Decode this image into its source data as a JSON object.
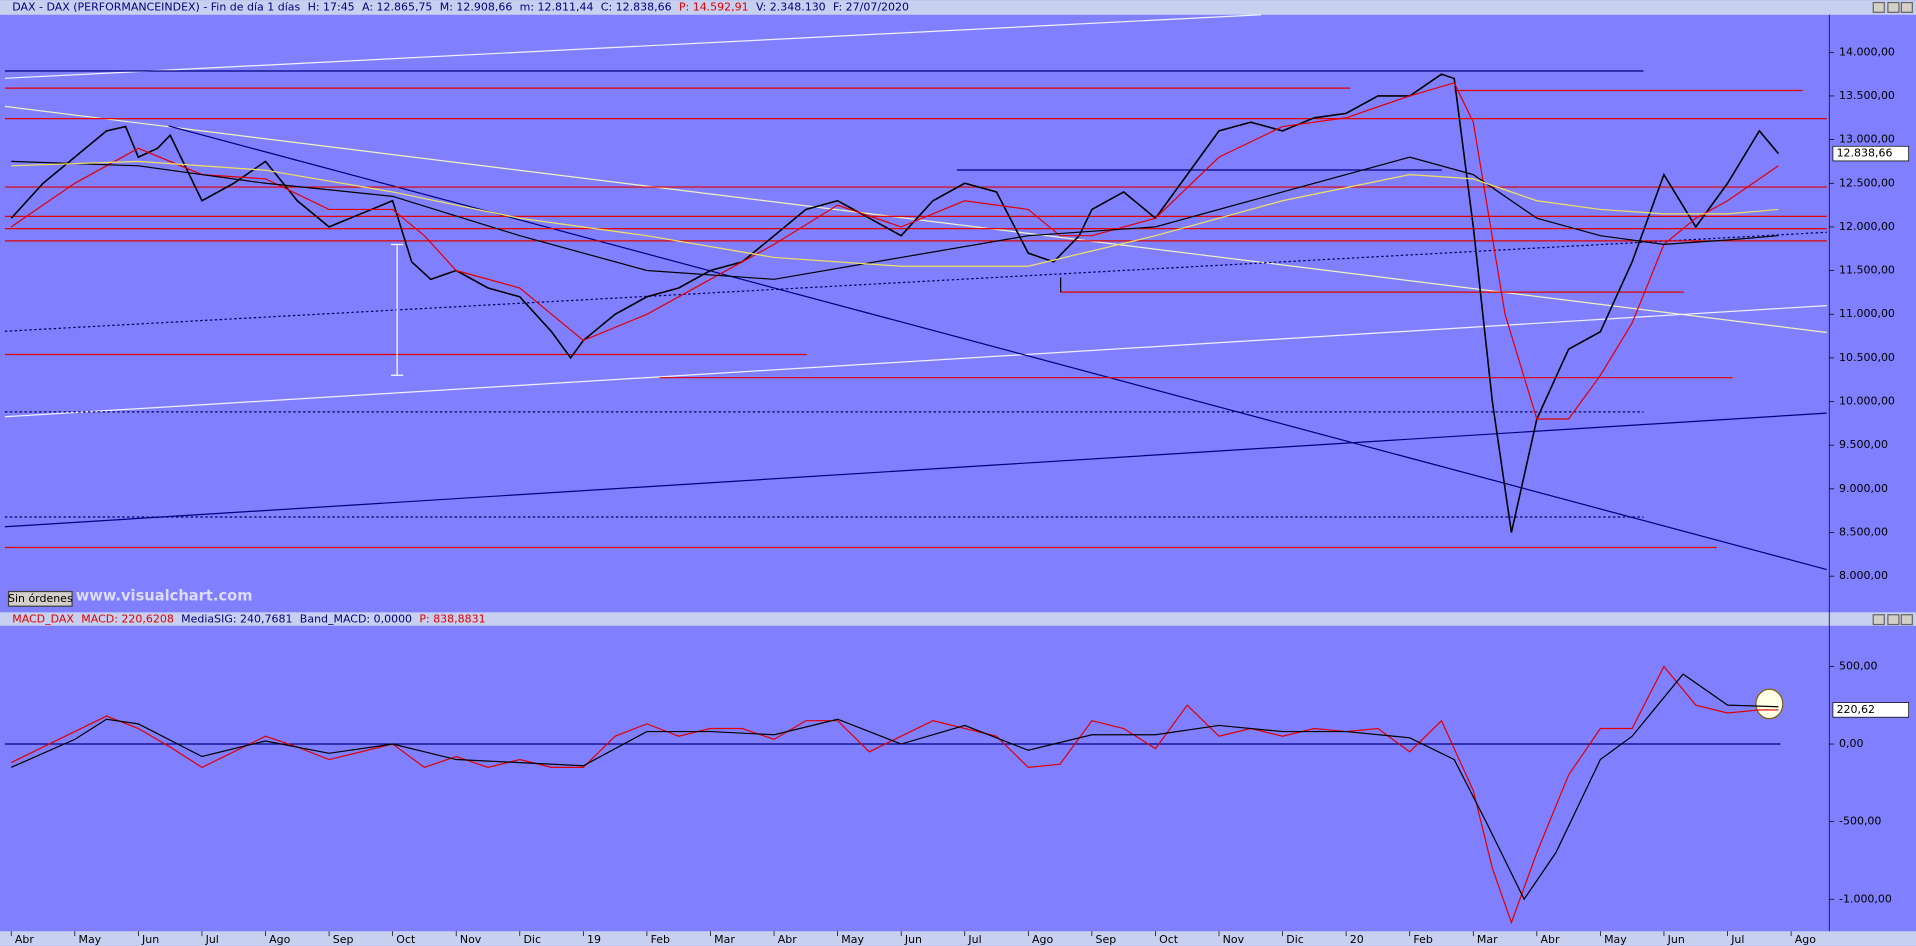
{
  "chart_data": [
    {
      "type": "line",
      "title": "DAX - DAX (PERFORMANCEINDEX) - Fin de día 1 días",
      "info": [
        "H: 17:45",
        "A: 12.865,75",
        "M: 12.908,66",
        "m: 12.811,44",
        "C: 12.838,66",
        "P: 14.592,91",
        "V: 2.348.130",
        "F: 27/07/2020"
      ],
      "info_colors": [
        "#000080",
        "#000080",
        "#000080",
        "#000080",
        "#000080",
        "#e00000",
        "#000080",
        "#000080"
      ],
      "price_label": "12.838,66",
      "button": "Sin órdenes",
      "watermark": "www.visualchart.com",
      "xlim": [
        -0.1,
        28.6
      ],
      "ylim": [
        7600,
        14430
      ],
      "yticks": [
        {
          "value": 8000,
          "label": "8.000,00"
        },
        {
          "value": 8500,
          "label": "8.500,00"
        },
        {
          "value": 9000,
          "label": "9.000,00"
        },
        {
          "value": 9500,
          "label": "9.500,00"
        },
        {
          "value": 10000,
          "label": "10.000,00"
        },
        {
          "value": 10500,
          "label": "10.500,00"
        },
        {
          "value": 11000,
          "label": "11.000,00"
        },
        {
          "value": 11500,
          "label": "11.500,00"
        },
        {
          "value": 12000,
          "label": "12.000,00"
        },
        {
          "value": 12500,
          "label": "12.500,00"
        },
        {
          "value": 13000,
          "label": "13.000,00"
        },
        {
          "value": 13500,
          "label": "13.500,00"
        },
        {
          "value": 14000,
          "label": "14.000,00"
        }
      ],
      "series": [
        {
          "color": "#000000",
          "width": 1.3,
          "x": [
            0,
            0.5,
            1,
            1.5,
            1.8,
            2,
            2.3,
            2.5,
            3,
            3.5,
            4,
            4.5,
            5,
            5.5,
            6,
            6.3,
            6.6,
            7,
            7.5,
            8,
            8.5,
            8.8,
            9,
            9.5,
            10,
            10.5,
            11,
            11.5,
            12,
            12.5,
            13,
            13.5,
            14,
            14.5,
            15,
            15.5,
            16,
            16.4,
            16.8,
            17,
            17.5,
            18,
            18.5,
            19,
            19.5,
            20,
            20.5,
            21,
            21.5,
            22,
            22.5,
            22.7,
            23,
            23.3,
            23.6,
            24,
            24.5,
            25,
            25.5,
            26,
            26.5,
            27,
            27.5,
            27.8
          ],
          "values": [
            12100,
            12500,
            12800,
            13100,
            13150,
            12800,
            12900,
            13050,
            12300,
            12500,
            12750,
            12300,
            12000,
            12150,
            12300,
            11600,
            11400,
            11500,
            11300,
            11200,
            10800,
            10500,
            10700,
            11000,
            11200,
            11300,
            11500,
            11600,
            11900,
            12200,
            12300,
            12100,
            11900,
            12300,
            12500,
            12400,
            11700,
            11600,
            11900,
            12200,
            12400,
            12100,
            12600,
            13100,
            13200,
            13100,
            13250,
            13300,
            13500,
            13500,
            13750,
            13700,
            12000,
            10000,
            8500,
            9800,
            10600,
            10800,
            11600,
            12600,
            12000,
            12500,
            13100,
            12840
          ]
        },
        {
          "color": "#e00000",
          "width": 1,
          "x": [
            0,
            1,
            2,
            3,
            4,
            5,
            6,
            6.5,
            7,
            8,
            9,
            10,
            11,
            12,
            13,
            14,
            15,
            16,
            16.5,
            17,
            18,
            19,
            20,
            21,
            22,
            22.7,
            23,
            23.5,
            24,
            24.5,
            25,
            25.5,
            26,
            26.5,
            27,
            27.8
          ],
          "values": [
            12000,
            12500,
            12900,
            12600,
            12550,
            12200,
            12200,
            11900,
            11500,
            11300,
            10700,
            11000,
            11400,
            11800,
            12250,
            12000,
            12300,
            12200,
            11900,
            11900,
            12100,
            12800,
            13150,
            13250,
            13500,
            13650,
            13200,
            11000,
            9800,
            9800,
            10300,
            10900,
            11800,
            12100,
            12300,
            12700
          ]
        },
        {
          "color": "#000000",
          "width": 1,
          "x": [
            0,
            2,
            4,
            6,
            8,
            10,
            12,
            14,
            16,
            18,
            20,
            22,
            23,
            24,
            25,
            26,
            27,
            27.8
          ],
          "values": [
            12750,
            12700,
            12500,
            12350,
            11900,
            11500,
            11400,
            11650,
            11900,
            12000,
            12400,
            12800,
            12600,
            12100,
            11900,
            11800,
            11850,
            11900
          ]
        },
        {
          "color": "#f0e060",
          "width": 1,
          "x": [
            0,
            2,
            4,
            6,
            8,
            10,
            12,
            14,
            16,
            18,
            20,
            22,
            23,
            24,
            25,
            26,
            27,
            27.8
          ],
          "values": [
            12700,
            12750,
            12650,
            12400,
            12100,
            11900,
            11650,
            11550,
            11550,
            11900,
            12300,
            12600,
            12550,
            12300,
            12200,
            12150,
            12150,
            12200
          ]
        }
      ]
    },
    {
      "type": "line",
      "title": "MACD_DAX",
      "info": [
        "MACD: 220,6208",
        "MediaSIG: 240,7681",
        "Band_MACD: 0,0000",
        "P: 838,8831"
      ],
      "info_colors": [
        "#e00000",
        "#000080",
        "#000080",
        "#e00000"
      ],
      "price_label": "220,62",
      "band": 0,
      "band_color": "#000080",
      "xlim": [
        -0.1,
        28.6
      ],
      "ylim": [
        -1206,
        762
      ],
      "yticks": [
        {
          "value": -1000,
          "label": "-1.000,00"
        },
        {
          "value": -500,
          "label": "-500,00"
        },
        {
          "value": 0,
          "label": "0,00"
        },
        {
          "value": 500,
          "label": "500,00"
        }
      ],
      "xticks": [
        {
          "value": 0,
          "label": "Abr"
        },
        {
          "value": 1,
          "label": "May"
        },
        {
          "value": 2,
          "label": "Jun"
        },
        {
          "value": 3,
          "label": "Jul"
        },
        {
          "value": 4,
          "label": "Ago"
        },
        {
          "value": 5,
          "label": "Sep"
        },
        {
          "value": 6,
          "label": "Oct"
        },
        {
          "value": 7,
          "label": "Nov"
        },
        {
          "value": 8,
          "label": "Dic"
        },
        {
          "value": 9,
          "label": "19"
        },
        {
          "value": 10,
          "label": "Feb"
        },
        {
          "value": 11,
          "label": "Mar"
        },
        {
          "value": 12,
          "label": "Abr"
        },
        {
          "value": 13,
          "label": "May"
        },
        {
          "value": 14,
          "label": "Jun"
        },
        {
          "value": 15,
          "label": "Jul"
        },
        {
          "value": 16,
          "label": "Ago"
        },
        {
          "value": 17,
          "label": "Sep"
        },
        {
          "value": 18,
          "label": "Oct"
        },
        {
          "value": 19,
          "label": "Nov"
        },
        {
          "value": 20,
          "label": "Dic"
        },
        {
          "value": 21,
          "label": "20"
        },
        {
          "value": 22,
          "label": "Feb"
        },
        {
          "value": 23,
          "label": "Mar"
        },
        {
          "value": 24,
          "label": "Abr"
        },
        {
          "value": 25,
          "label": "May"
        },
        {
          "value": 26,
          "label": "Jun"
        },
        {
          "value": 27,
          "label": "Jul"
        },
        {
          "value": 28,
          "label": "Ago"
        }
      ],
      "series": [
        {
          "color": "#e00000",
          "width": 1,
          "x": [
            0,
            0.5,
            1,
            1.5,
            2,
            2.5,
            3,
            3.5,
            4,
            4.5,
            5,
            5.5,
            6,
            6.5,
            7,
            7.5,
            8,
            8.5,
            9,
            9.5,
            10,
            10.5,
            11,
            11.5,
            12,
            12.5,
            13,
            13.5,
            14,
            14.5,
            15,
            15.5,
            16,
            16.5,
            17,
            17.5,
            18,
            18.5,
            19,
            19.5,
            20,
            20.5,
            21,
            21.5,
            22,
            22.5,
            23,
            23.3,
            23.6,
            24,
            24.5,
            25,
            25.5,
            26,
            26.5,
            27,
            27.5,
            27.8
          ],
          "values": [
            -120,
            -20,
            80,
            180,
            100,
            -20,
            -150,
            -50,
            50,
            -20,
            -100,
            -50,
            0,
            -150,
            -80,
            -150,
            -100,
            -150,
            -150,
            50,
            130,
            50,
            100,
            100,
            30,
            150,
            150,
            -50,
            50,
            150,
            100,
            50,
            -150,
            -130,
            150,
            100,
            -30,
            250,
            50,
            100,
            50,
            100,
            80,
            100,
            -50,
            150,
            -300,
            -800,
            -1150,
            -700,
            -200,
            100,
            100,
            500,
            250,
            200,
            220,
            220
          ]
        },
        {
          "color": "#000000",
          "width": 1,
          "x": [
            0,
            1,
            1.5,
            2,
            3,
            4,
            5,
            6,
            7,
            8,
            9,
            10,
            11,
            12,
            13,
            14,
            15,
            16,
            17,
            18,
            19,
            20,
            21,
            22,
            22.7,
            23.2,
            23.8,
            24.3,
            25,
            25.5,
            26.3,
            27,
            27.8
          ],
          "values": [
            -150,
            30,
            160,
            130,
            -80,
            20,
            -60,
            0,
            -100,
            -120,
            -140,
            80,
            80,
            60,
            160,
            0,
            120,
            -40,
            60,
            60,
            120,
            80,
            80,
            40,
            -100,
            -500,
            -1000,
            -700,
            -100,
            50,
            450,
            250,
            240
          ]
        }
      ]
    }
  ]
}
